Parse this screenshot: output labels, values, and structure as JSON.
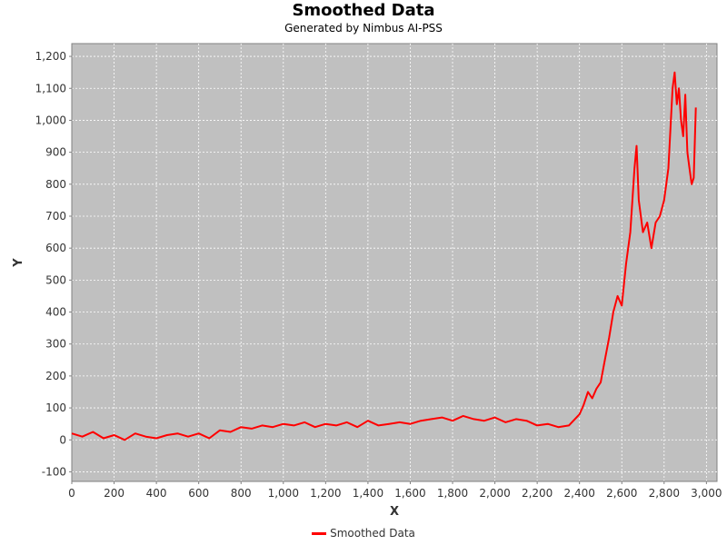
{
  "chart_data": {
    "type": "line",
    "title": "Smoothed Data",
    "subtitle": "Generated by Nimbus AI-PSS",
    "xlabel": "X",
    "ylabel": "Y",
    "xlim": [
      0,
      3050
    ],
    "ylim": [
      -130,
      1240
    ],
    "x_ticks": [
      0,
      200,
      400,
      600,
      800,
      1000,
      1200,
      1400,
      1600,
      1800,
      2000,
      2200,
      2400,
      2600,
      2800,
      3000
    ],
    "x_tick_labels": [
      "0",
      "200",
      "400",
      "600",
      "800",
      "1,000",
      "1,200",
      "1,400",
      "1,600",
      "1,800",
      "2,000",
      "2,200",
      "2,400",
      "2,600",
      "2,800",
      "3,000"
    ],
    "y_ticks": [
      -100,
      0,
      100,
      200,
      300,
      400,
      500,
      600,
      700,
      800,
      900,
      1000,
      1100,
      1200
    ],
    "y_tick_labels": [
      "-100",
      "0",
      "100",
      "200",
      "300",
      "400",
      "500",
      "600",
      "700",
      "800",
      "900",
      "1,000",
      "1,100",
      "1,200"
    ],
    "grid": true,
    "legend_position": "bottom-center",
    "colors": {
      "plot_background": "#c0c0c0",
      "grid": "#ffffff",
      "series": "#ff0000"
    },
    "series": [
      {
        "name": "Smoothed Data",
        "x": [
          0,
          50,
          100,
          150,
          200,
          250,
          300,
          350,
          400,
          450,
          500,
          550,
          600,
          650,
          700,
          750,
          800,
          850,
          900,
          950,
          1000,
          1050,
          1100,
          1150,
          1200,
          1250,
          1300,
          1350,
          1400,
          1450,
          1500,
          1550,
          1600,
          1650,
          1700,
          1750,
          1800,
          1850,
          1900,
          1950,
          2000,
          2050,
          2100,
          2150,
          2200,
          2250,
          2300,
          2350,
          2400,
          2420,
          2440,
          2460,
          2480,
          2500,
          2520,
          2540,
          2560,
          2580,
          2600,
          2620,
          2640,
          2660,
          2670,
          2680,
          2700,
          2720,
          2740,
          2760,
          2780,
          2800,
          2820,
          2840,
          2850,
          2860,
          2870,
          2880,
          2890,
          2900,
          2910,
          2920,
          2930,
          2940,
          2950
        ],
        "y": [
          20,
          10,
          25,
          5,
          15,
          0,
          20,
          10,
          5,
          15,
          20,
          10,
          20,
          5,
          30,
          25,
          40,
          35,
          45,
          40,
          50,
          45,
          55,
          40,
          50,
          45,
          55,
          40,
          60,
          45,
          50,
          55,
          50,
          60,
          65,
          70,
          60,
          75,
          65,
          60,
          70,
          55,
          65,
          60,
          45,
          50,
          40,
          45,
          80,
          110,
          150,
          130,
          160,
          180,
          250,
          320,
          400,
          450,
          420,
          550,
          650,
          850,
          920,
          750,
          650,
          680,
          600,
          680,
          700,
          750,
          850,
          1100,
          1150,
          1050,
          1100,
          1000,
          950,
          1080,
          900,
          850,
          800,
          820,
          1040
        ]
      }
    ]
  }
}
